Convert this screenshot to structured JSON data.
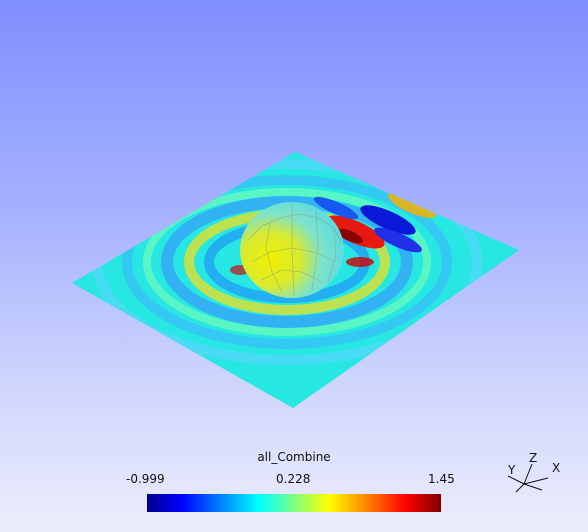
{
  "colorbar": {
    "title": "all_Combine",
    "min_label": "-0.999",
    "mid_label": "0.228",
    "max_label": "1.45",
    "colors": [
      "#00008f",
      "#0000ff",
      "#0080ff",
      "#00ffff",
      "#80ff80",
      "#ffff00",
      "#ff8000",
      "#ff0000",
      "#800000"
    ]
  },
  "axes": {
    "x_label": "X",
    "y_label": "Y",
    "z_label": "Z"
  },
  "background": {
    "top": "#7f8fff",
    "bottom": "#ecedfb"
  }
}
